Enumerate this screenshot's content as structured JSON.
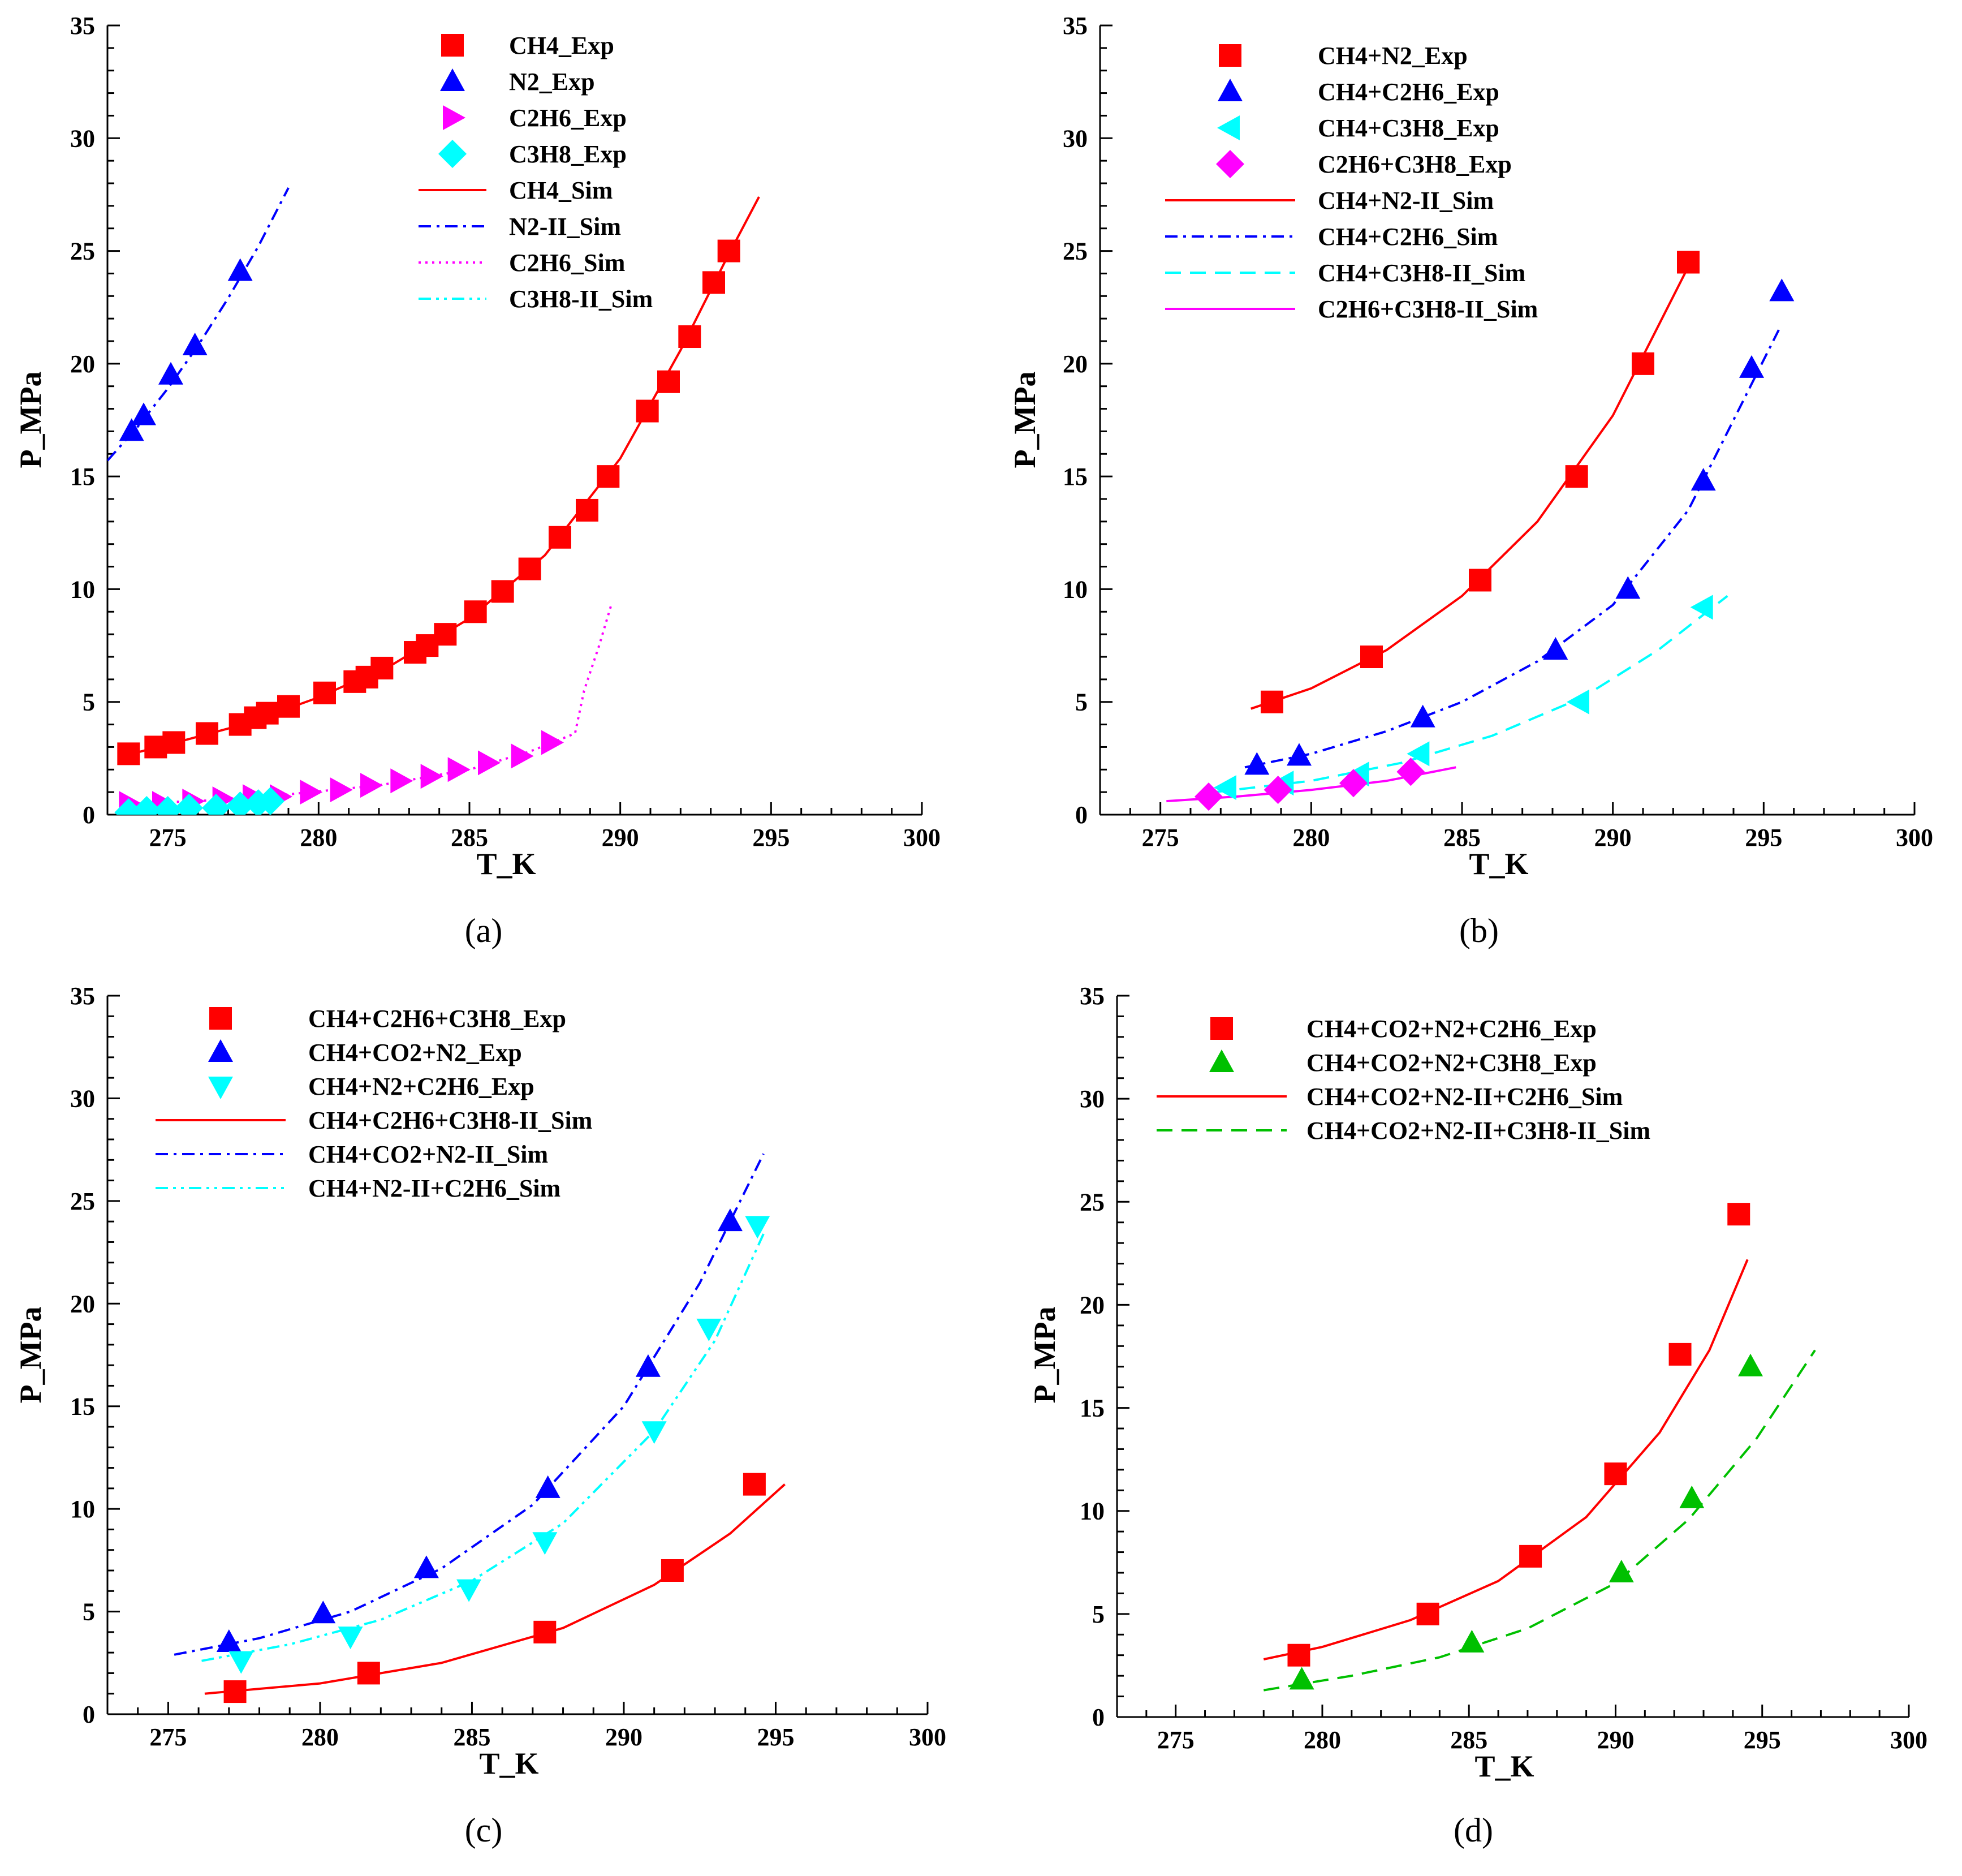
{
  "chart_data": [
    {
      "type": "scatter",
      "panel_label": "(a)",
      "xlabel": "T_K",
      "ylabel": "P_MPa",
      "xlim": [
        273,
        300
      ],
      "ylim": [
        0,
        35
      ],
      "xticks": [
        275,
        280,
        285,
        290,
        295,
        300
      ],
      "yticks": [
        0,
        5,
        10,
        15,
        20,
        25,
        30,
        35
      ],
      "grid": false,
      "legend_position": "top-center",
      "series": [
        {
          "name": "CH4_Exp",
          "kind": "marker",
          "marker": "square",
          "color": "#ff0000",
          "x": [
            273.7,
            274.6,
            275.2,
            276.3,
            277.4,
            277.9,
            278.3,
            279.0,
            280.2,
            281.2,
            281.6,
            282.1,
            283.2,
            283.6,
            284.2,
            285.2,
            286.1,
            287.0,
            288.0,
            288.9,
            289.6,
            290.9,
            291.6,
            292.3,
            293.1,
            293.6
          ],
          "y": [
            2.7,
            3.0,
            3.2,
            3.6,
            4.0,
            4.3,
            4.5,
            4.8,
            5.4,
            5.9,
            6.1,
            6.5,
            7.2,
            7.5,
            8.0,
            9.0,
            9.9,
            10.9,
            12.3,
            13.5,
            15.0,
            17.9,
            19.2,
            21.2,
            23.6,
            25.0
          ]
        },
        {
          "name": "N2_Exp",
          "kind": "marker",
          "marker": "triangle-up",
          "color": "#0000ff",
          "x": [
            273.8,
            274.2,
            275.1,
            275.9,
            277.4
          ],
          "y": [
            17.0,
            17.7,
            19.5,
            20.8,
            24.1
          ]
        },
        {
          "name": "C2H6_Exp",
          "kind": "marker",
          "marker": "triangle-right",
          "color": "#ff00ff",
          "x": [
            273.7,
            274.8,
            275.8,
            276.8,
            277.8,
            278.7,
            279.7,
            280.7,
            281.7,
            282.7,
            283.7,
            284.6,
            285.6,
            286.7,
            287.7
          ],
          "y": [
            0.5,
            0.5,
            0.6,
            0.7,
            0.8,
            0.8,
            1.0,
            1.1,
            1.3,
            1.5,
            1.7,
            2.0,
            2.3,
            2.6,
            3.2
          ]
        },
        {
          "name": "C3H8_Exp",
          "kind": "marker",
          "marker": "diamond",
          "color": "#00ffff",
          "x": [
            273.7,
            274.3,
            275.0,
            275.7,
            276.6,
            277.4,
            278.0,
            278.4
          ],
          "y": [
            0.1,
            0.2,
            0.2,
            0.3,
            0.3,
            0.4,
            0.5,
            0.6
          ]
        },
        {
          "name": "CH4_Sim",
          "kind": "line",
          "dash": "solid",
          "color": "#ff0000",
          "x": [
            273.5,
            275,
            277.5,
            280,
            282.5,
            285,
            287.5,
            290,
            292,
            293.5,
            294.6
          ],
          "y": [
            2.6,
            3.1,
            4.0,
            5.2,
            6.7,
            8.7,
            11.5,
            15.8,
            20.6,
            24.6,
            27.4
          ]
        },
        {
          "name": "N2-II_Sim",
          "kind": "line",
          "dash": "dashdot",
          "color": "#0000ff",
          "x": [
            273,
            274,
            275,
            276,
            277,
            278,
            279
          ],
          "y": [
            15.7,
            17.2,
            18.9,
            20.8,
            22.9,
            25.2,
            27.8
          ]
        },
        {
          "name": "C2H6_Sim",
          "kind": "line",
          "dash": "dotted",
          "color": "#ff00ff",
          "x": [
            273.5,
            276,
            279,
            282,
            285,
            287,
            288.5,
            288.8,
            289.3,
            289.7
          ],
          "y": [
            0.5,
            0.6,
            0.9,
            1.3,
            2.0,
            2.8,
            3.6,
            5.5,
            7.5,
            9.3
          ]
        },
        {
          "name": "C3H8-II_Sim",
          "kind": "line",
          "dash": "dashdotdot",
          "color": "#00ffff",
          "x": [
            273.5,
            275,
            276.5,
            278,
            279
          ],
          "y": [
            0.1,
            0.2,
            0.3,
            0.5,
            0.7
          ]
        }
      ]
    },
    {
      "type": "scatter",
      "panel_label": "(b)",
      "xlabel": "T_K",
      "ylabel": "P_MPa",
      "xlim": [
        273,
        300
      ],
      "ylim": [
        0,
        35
      ],
      "xticks": [
        275,
        280,
        285,
        290,
        295,
        300
      ],
      "yticks": [
        0,
        5,
        10,
        15,
        20,
        25,
        30,
        35
      ],
      "grid": false,
      "legend_position": "top-left",
      "series": [
        {
          "name": "CH4+N2_Exp",
          "kind": "marker",
          "marker": "square",
          "color": "#ff0000",
          "x": [
            278.7,
            282.0,
            285.6,
            288.8,
            291.0,
            292.5
          ],
          "y": [
            5.0,
            7.0,
            10.4,
            15.0,
            20.0,
            24.5
          ]
        },
        {
          "name": "CH4+C2H6_Exp",
          "kind": "marker",
          "marker": "triangle-up",
          "color": "#0000ff",
          "x": [
            278.2,
            279.6,
            283.7,
            288.1,
            290.5,
            293.0,
            294.6,
            295.6
          ],
          "y": [
            2.2,
            2.6,
            4.3,
            7.3,
            10.0,
            14.8,
            19.8,
            23.2
          ]
        },
        {
          "name": "CH4+C3H8_Exp",
          "kind": "marker",
          "marker": "triangle-left",
          "color": "#00ffff",
          "x": [
            277.2,
            279.1,
            281.6,
            283.6,
            288.9,
            293.0
          ],
          "y": [
            1.2,
            1.4,
            1.8,
            2.7,
            5.0,
            9.2
          ]
        },
        {
          "name": "C2H6+C3H8_Exp",
          "kind": "marker",
          "marker": "diamond",
          "color": "#ff00ff",
          "x": [
            276.6,
            278.9,
            281.4,
            283.3
          ],
          "y": [
            0.8,
            1.1,
            1.4,
            1.9
          ]
        },
        {
          "name": "CH4+N2-II_Sim",
          "kind": "line",
          "dash": "solid",
          "color": "#ff0000",
          "x": [
            278,
            280,
            282.5,
            285,
            287.5,
            290,
            292.5
          ],
          "y": [
            4.7,
            5.6,
            7.3,
            9.7,
            13.0,
            17.7,
            24.3
          ]
        },
        {
          "name": "CH4+C2H6_Sim",
          "kind": "line",
          "dash": "dashdot",
          "color": "#0000ff",
          "x": [
            277.8,
            280,
            282.5,
            285,
            287.5,
            290,
            292.5,
            295.5
          ],
          "y": [
            2.1,
            2.7,
            3.7,
            5.0,
            6.8,
            9.3,
            13.5,
            21.5
          ]
        },
        {
          "name": "CH4+C3H8-II_Sim",
          "kind": "line",
          "dash": "dashed",
          "color": "#00ffff",
          "x": [
            276.8,
            280,
            283,
            286,
            289,
            291.5,
            293.8
          ],
          "y": [
            1.0,
            1.5,
            2.3,
            3.5,
            5.2,
            7.3,
            9.7
          ]
        },
        {
          "name": "C2H6+C3H8-II_Sim",
          "kind": "line",
          "dash": "solid",
          "color": "#ff00ff",
          "x": [
            275.2,
            277.5,
            280,
            282.5,
            284.8
          ],
          "y": [
            0.6,
            0.8,
            1.1,
            1.5,
            2.1
          ]
        }
      ]
    },
    {
      "type": "scatter",
      "panel_label": "(c)",
      "xlabel": "T_K",
      "ylabel": "P_MPa",
      "xlim": [
        273,
        300
      ],
      "ylim": [
        0,
        35
      ],
      "xticks": [
        275,
        280,
        285,
        290,
        295,
        300
      ],
      "yticks": [
        0,
        5,
        10,
        15,
        20,
        25,
        30,
        35
      ],
      "grid": false,
      "legend_position": "top-left",
      "series": [
        {
          "name": "CH4+C2H6+C3H8_Exp",
          "kind": "marker",
          "marker": "square",
          "color": "#ff0000",
          "x": [
            277.2,
            281.6,
            287.4,
            291.6,
            294.3
          ],
          "y": [
            1.1,
            2.0,
            4.0,
            7.0,
            11.2
          ]
        },
        {
          "name": "CH4+CO2+N2_Exp",
          "kind": "marker",
          "marker": "triangle-up",
          "color": "#0000ff",
          "x": [
            277.0,
            280.1,
            283.5,
            287.5,
            290.8,
            293.5
          ],
          "y": [
            3.5,
            4.9,
            7.1,
            11.0,
            16.9,
            24.0
          ]
        },
        {
          "name": "CH4+N2+C2H6_Exp",
          "kind": "marker",
          "marker": "triangle-down",
          "color": "#00ffff",
          "x": [
            277.4,
            281.0,
            284.9,
            287.4,
            291.0,
            292.8,
            294.4
          ],
          "y": [
            2.6,
            3.8,
            6.1,
            8.4,
            13.8,
            18.8,
            23.8
          ]
        },
        {
          "name": "CH4+C2H6+C3H8-II_Sim",
          "kind": "line",
          "dash": "solid",
          "color": "#ff0000",
          "x": [
            276.2,
            280,
            284,
            288,
            291,
            293.5,
            295.3
          ],
          "y": [
            1.0,
            1.5,
            2.5,
            4.2,
            6.3,
            8.8,
            11.2
          ]
        },
        {
          "name": "CH4+CO2+N2-II_Sim",
          "kind": "line",
          "dash": "dashdot",
          "color": "#0000ff",
          "x": [
            275.2,
            278,
            281,
            284,
            287,
            290,
            292.5,
            294.6
          ],
          "y": [
            2.9,
            3.7,
            5.0,
            7.1,
            10.2,
            15.0,
            21.0,
            27.3
          ]
        },
        {
          "name": "CH4+N2-II+C2H6_Sim",
          "kind": "line",
          "dash": "dashdotdot",
          "color": "#00ffff",
          "x": [
            276.1,
            279,
            282,
            285,
            288,
            291,
            293,
            294.6
          ],
          "y": [
            2.6,
            3.4,
            4.6,
            6.5,
            9.3,
            13.8,
            18.2,
            23.4
          ]
        }
      ]
    },
    {
      "type": "scatter",
      "panel_label": "(d)",
      "xlabel": "T_K",
      "ylabel": "P_MPa",
      "xlim": [
        273,
        300
      ],
      "ylim": [
        0,
        35
      ],
      "xticks": [
        275,
        280,
        285,
        290,
        295,
        300
      ],
      "yticks": [
        0,
        5,
        10,
        15,
        20,
        25,
        30,
        35
      ],
      "grid": false,
      "legend_position": "top-left",
      "series": [
        {
          "name": "CH4+CO2+N2+C2H6_Exp",
          "kind": "marker",
          "marker": "square",
          "color": "#ff0000",
          "x": [
            279.2,
            283.6,
            287.1,
            290.0,
            292.2,
            294.2
          ],
          "y": [
            3.0,
            5.0,
            7.8,
            11.8,
            17.6,
            24.4
          ]
        },
        {
          "name": "CH4+CO2+N2+C3H8_Exp",
          "kind": "marker",
          "marker": "triangle-up",
          "color": "#00c000",
          "x": [
            279.3,
            285.1,
            290.2,
            292.6,
            294.6
          ],
          "y": [
            1.8,
            3.6,
            7.0,
            10.6,
            17.0
          ]
        },
        {
          "name": "CH4+CO2+N2-II+C2H6_Sim",
          "kind": "line",
          "dash": "solid",
          "color": "#ff0000",
          "x": [
            278,
            280,
            283,
            286,
            289,
            291.5,
            293.2,
            294.5
          ],
          "y": [
            2.8,
            3.4,
            4.7,
            6.6,
            9.7,
            13.8,
            17.8,
            22.2
          ]
        },
        {
          "name": "CH4+CO2+N2-II+C3H8-II_Sim",
          "kind": "line",
          "dash": "dashed",
          "color": "#00c000",
          "x": [
            278,
            281,
            284,
            287,
            290,
            292.5,
            294.8,
            296.8
          ],
          "y": [
            1.3,
            2.0,
            2.9,
            4.3,
            6.5,
            9.6,
            13.5,
            17.8
          ]
        }
      ]
    }
  ]
}
